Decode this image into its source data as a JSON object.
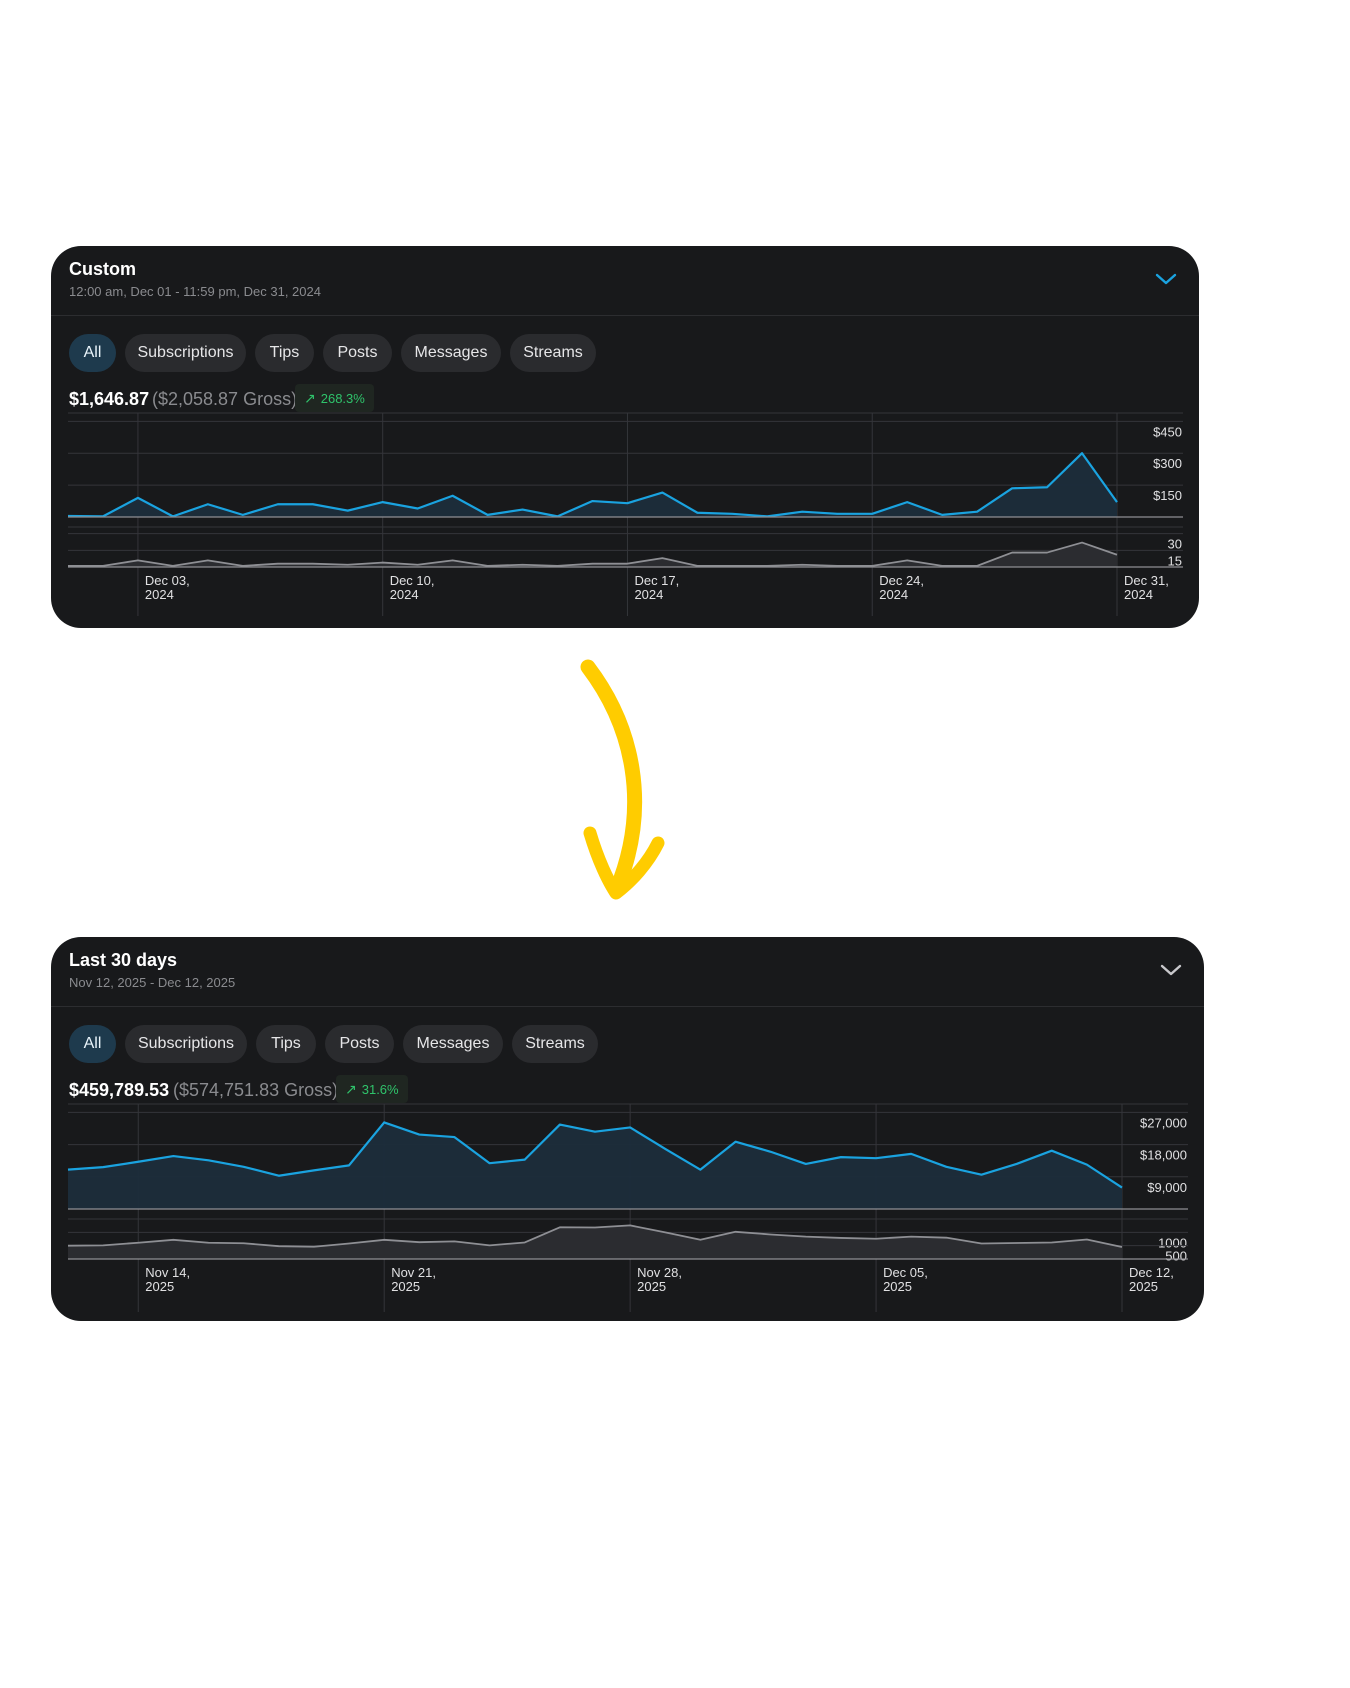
{
  "colors": {
    "background": "#ffffff",
    "card": "#18191b",
    "accent": "#1aa3e0",
    "secondary_line": "#8e8f94",
    "positive": "#2fc36b",
    "arrow": "#ffcc00"
  },
  "arrow_icon": "down-arrow-icon",
  "cards": [
    {
      "title": "Custom",
      "subtitle": "12:00 am, Dec 01 - 11:59 pm, Dec 31, 2024",
      "tabs": [
        "All",
        "Subscriptions",
        "Tips",
        "Posts",
        "Messages",
        "Streams"
      ],
      "active_tab": "All",
      "net": "$1,646.87",
      "gross": "($2,058.87 Gross)",
      "change": "268.3%",
      "chart_data": {
        "type": "area",
        "x_ticks": [
          [
            "Dec 03,",
            "2024"
          ],
          [
            "Dec 10,",
            "2024"
          ],
          [
            "Dec 17,",
            "2024"
          ],
          [
            "Dec 24,",
            "2024"
          ],
          [
            "Dec 31,",
            "2024"
          ]
        ],
        "x_tick_days": [
          3,
          10,
          17,
          24,
          31
        ],
        "x_range": [
          1,
          31
        ],
        "series": [
          {
            "y_ticks": [
              "$450",
              "$300",
              "$150"
            ],
            "y_tick_values": [
              450,
              300,
              150
            ],
            "ylim": [
              0,
              450
            ],
            "values": [
              5,
              3,
              90,
              3,
              60,
              10,
              60,
              60,
              30,
              70,
              40,
              100,
              10,
              35,
              3,
              75,
              65,
              115,
              20,
              15,
              3,
              25,
              15,
              15,
              70,
              10,
              25,
              135,
              140,
              300,
              70
            ]
          },
          {
            "y_ticks": [
              "30",
              "15"
            ],
            "y_tick_values": [
              30,
              15
            ],
            "ylim": [
              0,
              36
            ],
            "values": [
              1,
              1,
              6,
              1,
              6,
              1,
              3,
              3,
              2,
              4,
              2,
              6,
              1,
              2,
              1,
              3,
              3,
              8,
              1,
              1,
              1,
              2,
              1,
              1,
              6,
              1,
              1,
              13,
              13,
              22,
              11
            ]
          }
        ]
      }
    },
    {
      "title": "Last 30 days",
      "subtitle": "Nov 12, 2025 - Dec 12, 2025",
      "tabs": [
        "All",
        "Subscriptions",
        "Tips",
        "Posts",
        "Messages",
        "Streams"
      ],
      "active_tab": "All",
      "net": "$459,789.53",
      "gross": "($574,751.83 Gross)",
      "change": "31.6%",
      "chart_data": {
        "type": "area",
        "x_ticks": [
          [
            "Nov 14,",
            "2025"
          ],
          [
            "Nov 21,",
            "2025"
          ],
          [
            "Nov 28,",
            "2025"
          ],
          [
            "Dec 05,",
            "2025"
          ],
          [
            "Dec 12,",
            "2025"
          ]
        ],
        "x_tick_days": [
          2,
          9,
          16,
          23,
          30
        ],
        "x_range": [
          0,
          30
        ],
        "series": [
          {
            "y_ticks": [
              "$27,000",
              "$18,000",
              "$9,000"
            ],
            "y_tick_values": [
              27000,
              18000,
              9000
            ],
            "ylim": [
              0,
              27000
            ],
            "values": [
              11000,
              11700,
              13200,
              14800,
              13600,
              11800,
              9300,
              10800,
              12200,
              24200,
              20800,
              20100,
              12800,
              13800,
              23600,
              21600,
              22800,
              16800,
              11000,
              18800,
              16000,
              12600,
              14500,
              14200,
              15400,
              11800,
              9600,
              12600,
              16300,
              12400,
              6000
            ]
          },
          {
            "y_ticks": [
              "1000",
              "500"
            ],
            "y_tick_values": [
              1000,
              500
            ],
            "ylim": [
              0,
              1500
            ],
            "values": [
              500,
              510,
              610,
              720,
              610,
              590,
              480,
              460,
              580,
              720,
              630,
              660,
              510,
              620,
              1190,
              1180,
              1260,
              1000,
              720,
              1020,
              920,
              840,
              790,
              760,
              840,
              800,
              580,
              600,
              620,
              730,
              450
            ]
          }
        ]
      }
    }
  ]
}
